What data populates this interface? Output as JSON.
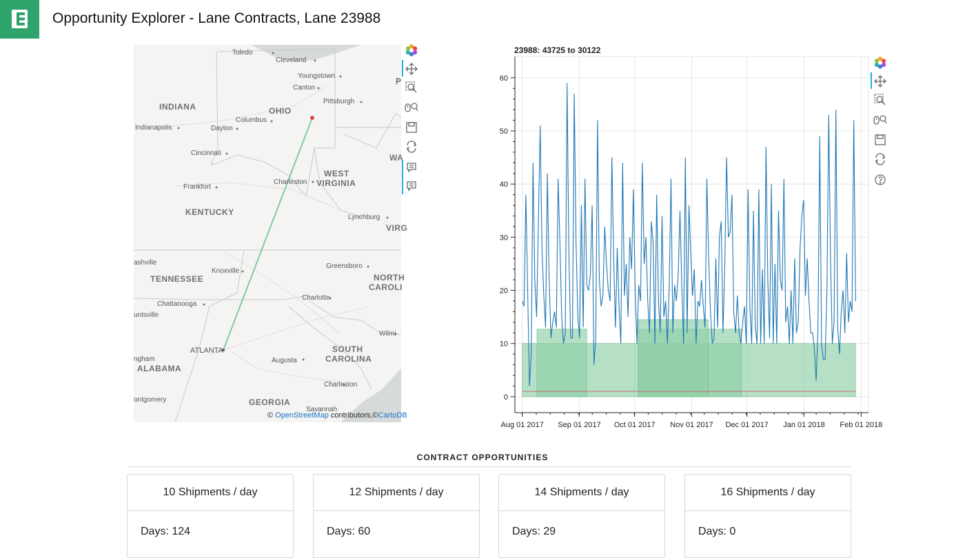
{
  "app": {
    "title": "Opportunity Explorer - Lane Contracts, Lane 23988",
    "logo_icon": "leaf-logo"
  },
  "map": {
    "states": [
      "INDIANA",
      "OHIO",
      "WEST",
      "VIRGINIA",
      "KENTUCKY",
      "TENNESSEE",
      "NORTH",
      "CAROLI",
      "SOUTH",
      "CAROLINA",
      "ALABAMA",
      "GEORGIA",
      "P",
      "WA",
      "VIRG"
    ],
    "cities": [
      "Toledo",
      "Cleveland",
      "Youngstown",
      "Canton",
      "Pittsburgh",
      "Columbus",
      "Indianapolis",
      "Dayton",
      "Cincinnati",
      "Charleston",
      "Frankfort",
      "Lynchburg",
      "ashville",
      "Knoxville",
      "Greensboro",
      "Chattanooga",
      "Charlotte",
      "untsville",
      "ngham",
      "Atlanta",
      "Augusta",
      "Wilmi",
      "Charleston",
      "ontgomery",
      "Savannah"
    ],
    "attribution": {
      "prefix": "©",
      "link1": "OpenStreetMap",
      "middle": "contributors,©",
      "link2": "CartoDB"
    },
    "route_color": "#7fcba6",
    "endpoint_color": "#e0474c"
  },
  "toolbar_icons": [
    "bokeh-logo-icon",
    "pan-icon",
    "box-zoom-icon",
    "wheel-zoom-icon",
    "save-icon",
    "reset-icon",
    "hover-icon",
    "hover-icon-2",
    "help-icon"
  ],
  "chart_data": {
    "type": "line",
    "title": "23988: 43725 to 30122",
    "x_ticks": [
      "Aug 01 2017",
      "Sep 01 2017",
      "Oct 01 2017",
      "Nov 01 2017",
      "Dec 01 2017",
      "Jan 01 2018",
      "Feb 01 2018"
    ],
    "y_ticks": [
      "0",
      "10",
      "20",
      "30",
      "40",
      "50",
      "60"
    ],
    "ylim": [
      -3,
      64
    ],
    "xlim_days": [
      -4,
      188
    ],
    "x_start": "2017-08-01",
    "grid": true,
    "series": [
      {
        "color": "#1f77b4",
        "values": [
          18,
          17,
          38,
          20,
          2,
          8,
          44,
          22,
          15,
          33,
          51,
          28,
          19,
          13,
          42,
          22,
          11,
          14,
          16,
          13,
          41,
          29,
          15,
          10,
          12,
          59,
          27,
          11,
          11,
          57,
          29,
          15,
          11,
          36,
          13,
          41,
          21,
          20,
          23,
          36,
          6,
          11,
          52,
          22,
          17,
          19,
          32,
          25,
          20,
          18,
          45,
          26,
          13,
          28,
          17,
          10,
          44,
          19,
          25,
          15,
          30,
          24,
          39,
          20,
          10,
          21,
          18,
          44,
          25,
          30,
          18,
          12,
          33,
          29,
          10,
          38,
          18,
          12,
          34,
          15,
          18,
          10,
          21,
          41,
          12,
          21,
          18,
          23,
          35,
          21,
          10,
          45,
          12,
          36,
          27,
          19,
          24,
          10,
          18,
          17,
          22,
          17,
          13,
          41,
          26,
          16,
          10,
          11,
          26,
          13,
          30,
          33,
          12,
          25,
          45,
          30,
          31,
          38,
          16,
          12,
          19,
          12,
          10,
          14,
          17,
          10,
          39,
          17,
          10,
          35,
          13,
          10,
          39,
          10,
          24,
          10,
          47,
          22,
          11,
          40,
          10,
          25,
          10,
          35,
          22,
          20,
          41,
          14,
          17,
          10,
          20,
          10,
          26,
          12,
          14,
          28,
          34,
          37,
          19,
          26,
          18,
          12,
          12,
          9,
          3,
          13,
          49,
          10,
          7,
          7,
          20,
          53,
          26,
          10,
          14,
          54,
          13,
          8,
          16,
          20,
          12,
          27,
          14,
          18,
          16,
          52,
          18
        ]
      }
    ],
    "areas": [
      {
        "x0_days": 0,
        "x1_days": 181,
        "y": 10
      },
      {
        "x0_days": 8,
        "x1_days": 35,
        "y": 12.7
      },
      {
        "x0_days": 63,
        "x1_days": 119,
        "y": 12.7
      },
      {
        "x0_days": 63,
        "x1_days": 101,
        "y": 14.5
      }
    ],
    "reference_line": {
      "y": 1,
      "color": "#c86a6a"
    },
    "area_color": "#8fcfa6"
  },
  "contracts": {
    "title": "CONTRACT OPPORTUNITIES",
    "cards": [
      {
        "header": "10 Shipments / day",
        "days": "Days: 124"
      },
      {
        "header": "12 Shipments / day",
        "days": "Days: 60"
      },
      {
        "header": "14 Shipments / day",
        "days": "Days: 29"
      },
      {
        "header": "16 Shipments / day",
        "days": "Days: 0"
      }
    ]
  }
}
